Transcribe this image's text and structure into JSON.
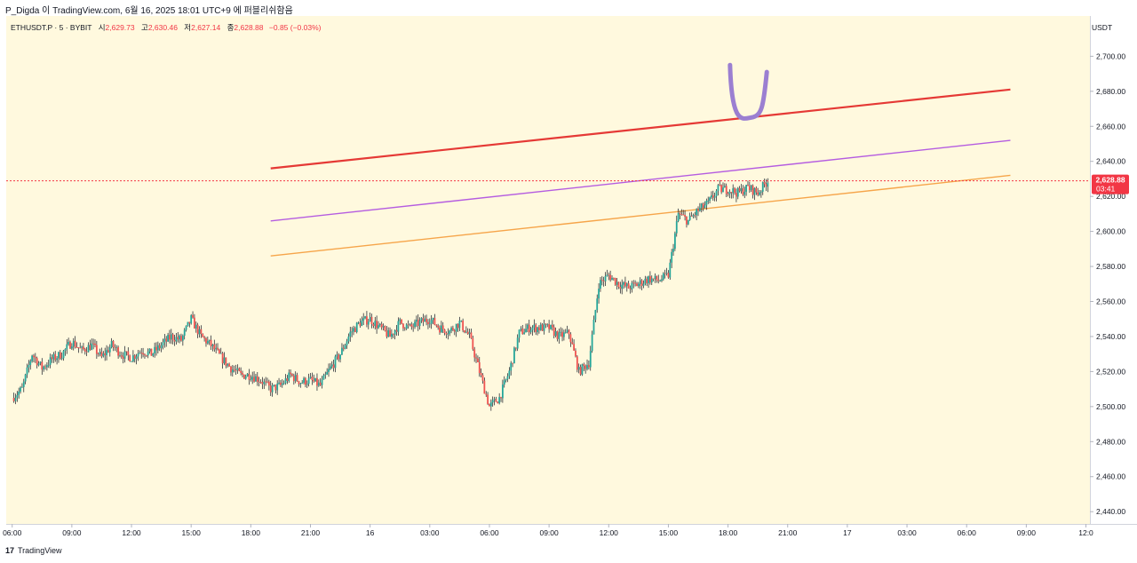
{
  "caption": "P_Digda 이 TradingView.com, 6월 16, 2025 18:01 UTC+9 에 퍼블리쉬함음",
  "legend": {
    "symbol": "ETHUSDT.P · 5 · BYBIT",
    "open_label": "시",
    "open": "2,629.73",
    "high_label": "고",
    "high": "2,630.46",
    "low_label": "저",
    "low": "2,627.14",
    "close_label": "종",
    "close": "2,628.88",
    "change": "−0.85 (−0.03%)"
  },
  "currency": "USDT",
  "footer": {
    "logo": "17",
    "brand": "TradingView"
  },
  "colors": {
    "background": "#fff9de",
    "up": "#26a69a",
    "down": "#ef5350",
    "wick": "#131722",
    "red_line": "#e53935",
    "purple_line": "#b55de0",
    "orange_line": "#f6a54a",
    "u_mark": "#9b7fd1",
    "price_tag": "#f23645"
  },
  "chart_data": {
    "type": "candlestick",
    "symbol": "ETHUSDT.P",
    "interval": "5",
    "exchange": "BYBIT",
    "y_range": [
      2433,
      2723
    ],
    "y_ticks": [
      2440,
      2460,
      2480,
      2500,
      2520,
      2540,
      2560,
      2580,
      2600,
      2620,
      2640,
      2660,
      2680,
      2700
    ],
    "y_tick_labels": [
      "2,440.00",
      "2,460.00",
      "2,480.00",
      "2,500.00",
      "2,520.00",
      "2,540.00",
      "2,560.00",
      "2,580.00",
      "2,600.00",
      "2,620.00",
      "2,640.00",
      "2,660.00",
      "2,680.00",
      "2,700.00"
    ],
    "x_range_hours": [
      -0.3,
      54.2
    ],
    "x_ticks": [
      0,
      3,
      6,
      9,
      12,
      15,
      18,
      21,
      24,
      27,
      30,
      33,
      36,
      39,
      42,
      45,
      48,
      51,
      54
    ],
    "x_tick_labels": [
      "06:00",
      "09:00",
      "12:00",
      "15:00",
      "18:00",
      "21:00",
      "16",
      "03:00",
      "06:00",
      "09:00",
      "12:00",
      "15:00",
      "18:00",
      "21:00",
      "17",
      "03:00",
      "06:00",
      "09:00",
      "12:0"
    ],
    "close_path": [
      [
        0.0,
        2505
      ],
      [
        0.5,
        2510
      ],
      [
        1.0,
        2530
      ],
      [
        1.5,
        2522
      ],
      [
        2.0,
        2527
      ],
      [
        2.5,
        2530
      ],
      [
        3.0,
        2537
      ],
      [
        3.5,
        2532
      ],
      [
        4.0,
        2535
      ],
      [
        4.5,
        2528
      ],
      [
        5.0,
        2535
      ],
      [
        5.5,
        2530
      ],
      [
        6.0,
        2528
      ],
      [
        6.5,
        2532
      ],
      [
        7.0,
        2530
      ],
      [
        7.5,
        2535
      ],
      [
        8.0,
        2540
      ],
      [
        8.5,
        2538
      ],
      [
        9.0,
        2550
      ],
      [
        9.5,
        2540
      ],
      [
        10.0,
        2535
      ],
      [
        10.5,
        2528
      ],
      [
        11.0,
        2522
      ],
      [
        11.5,
        2518
      ],
      [
        12.0,
        2518
      ],
      [
        12.5,
        2515
      ],
      [
        13.0,
        2510
      ],
      [
        13.5,
        2512
      ],
      [
        14.0,
        2518
      ],
      [
        14.5,
        2514
      ],
      [
        15.0,
        2515
      ],
      [
        15.5,
        2512
      ],
      [
        16.0,
        2522
      ],
      [
        16.5,
        2530
      ],
      [
        17.0,
        2542
      ],
      [
        17.5,
        2548
      ],
      [
        18.0,
        2550
      ],
      [
        18.5,
        2545
      ],
      [
        19.0,
        2540
      ],
      [
        19.5,
        2548
      ],
      [
        20.0,
        2545
      ],
      [
        20.5,
        2548
      ],
      [
        21.0,
        2550
      ],
      [
        21.5,
        2545
      ],
      [
        22.0,
        2543
      ],
      [
        22.5,
        2548
      ],
      [
        23.0,
        2540
      ],
      [
        23.5,
        2520
      ],
      [
        24.0,
        2500
      ],
      [
        24.5,
        2505
      ],
      [
        25.0,
        2520
      ],
      [
        25.5,
        2542
      ],
      [
        26.0,
        2545
      ],
      [
        26.5,
        2545
      ],
      [
        27.0,
        2545
      ],
      [
        27.5,
        2540
      ],
      [
        28.0,
        2542
      ],
      [
        28.5,
        2520
      ],
      [
        29.0,
        2525
      ],
      [
        29.5,
        2570
      ],
      [
        30.0,
        2575
      ],
      [
        30.5,
        2570
      ],
      [
        31.0,
        2568
      ],
      [
        31.5,
        2570
      ],
      [
        32.0,
        2573
      ],
      [
        32.5,
        2572
      ],
      [
        33.0,
        2575
      ],
      [
        33.5,
        2610
      ],
      [
        34.0,
        2606
      ],
      [
        34.5,
        2612
      ],
      [
        35.0,
        2616
      ],
      [
        35.5,
        2624
      ],
      [
        36.0,
        2624
      ],
      [
        36.5,
        2622
      ],
      [
        37.0,
        2625
      ],
      [
        37.5,
        2622
      ],
      [
        38.0,
        2629
      ]
    ],
    "current_price": 2628.88,
    "current_price_label": "2,628.88",
    "countdown_label": "03:41",
    "trend_lines": [
      {
        "color": "red_line",
        "x1": 13.0,
        "y1": 2636,
        "x2": 50.2,
        "y2": 2681
      },
      {
        "color": "purple_line",
        "x1": 13.0,
        "y1": 2606,
        "x2": 50.2,
        "y2": 2652
      },
      {
        "color": "orange_line",
        "x1": 13.0,
        "y1": 2586,
        "x2": 50.2,
        "y2": 2632
      }
    ],
    "u_mark": {
      "left": [
        36.1,
        2695
      ],
      "bottom": [
        37.15,
        2665
      ],
      "right": [
        37.95,
        2691
      ]
    }
  }
}
